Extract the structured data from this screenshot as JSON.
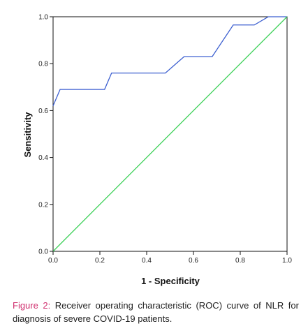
{
  "chart_data": {
    "type": "line",
    "xlabel": "1 - Specificity",
    "ylabel": "Sensitivity",
    "xlim": [
      0,
      1
    ],
    "ylim": [
      0,
      1
    ],
    "x_ticks": [
      "0.0",
      "0.2",
      "0.4",
      "0.6",
      "0.8",
      "1.0"
    ],
    "y_ticks": [
      "0.0",
      "0.2",
      "0.4",
      "0.6",
      "0.8",
      "1.0"
    ],
    "grid": false,
    "legend": "none",
    "series": [
      {
        "color": "#3c5fd0",
        "x": [
          0,
          0.03,
          0.03,
          0.22,
          0.25,
          0.25,
          0.48,
          0.56,
          0.56,
          0.68,
          0.77,
          0.77,
          0.86,
          0.92,
          0.92,
          1.0
        ],
        "y": [
          0.62,
          0.69,
          0.69,
          0.69,
          0.76,
          0.76,
          0.76,
          0.83,
          0.83,
          0.83,
          0.965,
          0.965,
          0.965,
          1.0,
          1.0,
          1.0
        ]
      },
      {
        "color": "#3fd15a",
        "x": [
          0,
          1
        ],
        "y": [
          0,
          1
        ]
      }
    ]
  },
  "caption": {
    "label": "Figure 2:",
    "text": " Receiver operating characteristic (ROC) curve of NLR for diagnosis of severe COVID-19 patients."
  }
}
